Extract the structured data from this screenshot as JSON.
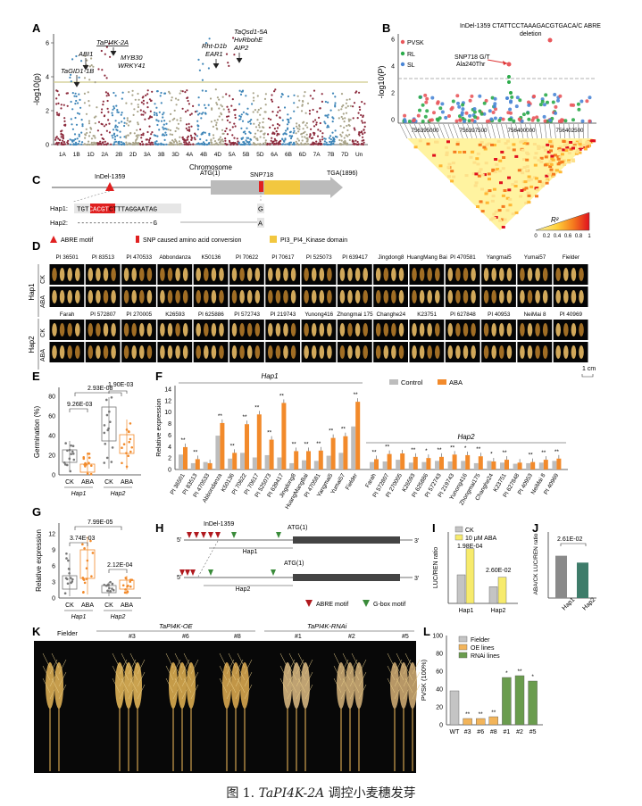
{
  "caption": {
    "prefix": "图 1. ",
    "gene": "TaPI4K-2A",
    "suffix": " 调控小麦穗发芽"
  },
  "panels": {
    "A": "A",
    "B": "B",
    "C": "C",
    "D": "D",
    "E": "E",
    "F": "F",
    "G": "G",
    "H": "H",
    "I": "I",
    "J": "J",
    "K": "K",
    "L": "L"
  },
  "panel_a": {
    "ylabel": "-log10(p)",
    "xlabel": "Chromosome",
    "yticks": [
      "6",
      "4",
      "2",
      "0"
    ],
    "chromosomes": [
      "1A",
      "1B",
      "1D",
      "2A",
      "2B",
      "2D",
      "3A",
      "3B",
      "3D",
      "4A",
      "4B",
      "4D",
      "5A",
      "5B",
      "5D",
      "6A",
      "6B",
      "6D",
      "7A",
      "7B",
      "7D",
      "Un"
    ],
    "genes": [
      "TaGID1-1B",
      "ABI1",
      "TaPI4K-2A",
      "MYB30",
      "WRKY41",
      "Rht-D1b",
      "EAR1",
      "TaQsd1-5A",
      "HvRbohE",
      "AIP2"
    ]
  },
  "panel_b": {
    "ylabel": "-log10(P)",
    "yticks": [
      "6",
      "4",
      "2",
      "0"
    ],
    "xticks": [
      "756395000",
      "756397500",
      "756400000",
      "756402500"
    ],
    "legend": [
      "PVSK",
      "RL",
      "SL"
    ],
    "colors": {
      "PVSK": "#e9585c",
      "RL": "#2bab4a",
      "SL": "#4a86d6"
    },
    "annot_indel": "InDel-1359 CTATTCCTAAAGACGTGACA/C ABRE",
    "annot_indel2": "deletion",
    "annot_snp": "SNP718 G/T",
    "annot_snp2": "Ala240Thr",
    "ld_label": "R²",
    "ld_ticks": [
      "0",
      "0.2",
      "0.4",
      "0.6",
      "0.8",
      "1"
    ]
  },
  "panel_c": {
    "indel": "InDel-1359",
    "atg": "ATG(1)",
    "snp": "SNP718",
    "tga": "TGA(1896)",
    "hap1_label": "Hap1:",
    "hap1_seq_a": "TGT",
    "hap1_seq_b": "CACGT",
    "hap1_seq_c": "CTTTAGGAATAG",
    "hap1_base": "G",
    "hap2_label": "Hap2:",
    "hap2_seq": "-------------------G",
    "hap2_base": "A",
    "legend": [
      "ABRE motif",
      "SNP caused amino acid conversion",
      "PI3_PI4_Kinase domain"
    ]
  },
  "panel_d": {
    "row_labels": [
      "Hap1",
      "Hap2"
    ],
    "sub_labels": [
      "CK",
      "ABA",
      "CK",
      "ABA"
    ],
    "hap1_names": [
      "PI 36501",
      "PI 83513",
      "PI 470533",
      "Abbondanza",
      "K50136",
      "PI 70622",
      "PI 70617",
      "PI 525073",
      "PI 639417",
      "Jingdong8",
      "HuangMang Bai",
      "PI 470581",
      "Yangmai5",
      "Yumai57",
      "Fielder"
    ],
    "hap2_names": [
      "Farah",
      "PI 572807",
      "PI 270005",
      "K26593",
      "PI 625886",
      "PI 572743",
      "PI 219743",
      "Yunong416",
      "Zhongmai 175",
      "Changhe24",
      "K23751",
      "PI 627848",
      "PI 40953",
      "NeiMai 8",
      "PI 40969"
    ],
    "scale": "1 cm"
  },
  "panel_e": {
    "ylabel": "Germination (%)",
    "yticks": [
      "80",
      "60",
      "40",
      "20",
      "0"
    ],
    "groups": [
      "CK",
      "ABA",
      "CK",
      "ABA"
    ],
    "haps": [
      "Hap1",
      "Hap2"
    ],
    "p_top": "2.93E-08",
    "p_left": "9.26E-03",
    "p_right": "1.90E-03"
  },
  "panel_f": {
    "ylabel": "Relative expression",
    "yticks": [
      "14",
      "12",
      "10",
      "8",
      "6",
      "4",
      "2",
      "0"
    ],
    "legend": [
      "Control",
      "ABA"
    ],
    "hap1": "Hap1",
    "hap2": "Hap2",
    "sig": "**",
    "sig1": "*"
  },
  "panel_g": {
    "ylabel": "Relative expression",
    "yticks": [
      "12",
      "9",
      "6",
      "3",
      "0"
    ],
    "p_top": "7.99E-05",
    "p_left": "3.74E-03",
    "p_right": "2.12E-04",
    "groups": [
      "CK",
      "ABA",
      "CK",
      "ABA"
    ],
    "haps": [
      "Hap1",
      "Hap2"
    ]
  },
  "panel_h": {
    "indel": "InDel-1359",
    "atg": "ATG(1)",
    "hap1": "Hap1",
    "hap2": "Hap2",
    "five": "5'",
    "three": "3'",
    "legend_abre": "ABRE motif",
    "legend_gbox": "G-box motif"
  },
  "panel_i": {
    "ylabel": "LUC/REN ratio",
    "legend": [
      "CK",
      "10 μM ABA"
    ],
    "p1": "1.98E-04",
    "p2": "2.60E-02",
    "groups": [
      "Hap1",
      "Hap2"
    ]
  },
  "panel_j": {
    "ylabel": "ABA/CK LUC/REN ratio",
    "p": "2.61E-02",
    "groups": [
      "Hap1",
      "Hap2"
    ]
  },
  "panel_k": {
    "left_label": "Fielder",
    "oe_label": "TaPI4K-OE",
    "rnai_label": "TaPI4K-RNAi",
    "oe_lines": [
      "#3",
      "#6",
      "#8"
    ],
    "rnai_lines": [
      "#1",
      "#2",
      "#5"
    ]
  },
  "panel_l": {
    "ylabel": "PVSK (100%)",
    "yticks": [
      "100",
      "80",
      "60",
      "40",
      "20",
      "0"
    ],
    "legend": [
      "Fielder",
      "OE lines",
      "RNAi lines"
    ],
    "categories": [
      "WT",
      "#3",
      "#6",
      "#8",
      "#1",
      "#2",
      "#5"
    ],
    "stars": [
      "",
      "**",
      "**",
      "**",
      "*",
      "**",
      "*"
    ]
  },
  "chart_data": [
    {
      "type": "bar",
      "title": "F Hap1/Hap2 relative expression",
      "categories": [
        "PI 36501",
        "PI 83513",
        "PI 470533",
        "Abbondanza",
        "K50136",
        "PI 70622",
        "PI 70617",
        "PI 525073",
        "PI 639417",
        "Jingdong8",
        "HuangMangBai",
        "PI 470581",
        "Yangmai5",
        "Yumai57",
        "Fielder",
        "Farah",
        "PI 572807",
        "PI 270005",
        "K26593",
        "PI 625886",
        "PI 572743",
        "PI 219743",
        "Yunong416",
        "Zhongmai175",
        "Changhe24",
        "K23751",
        "PI 627848",
        "PI 40953",
        "NeiMai 8",
        "PI 40969"
      ],
      "series": [
        {
          "name": "Control",
          "values": [
            2.6,
            1.1,
            1.3,
            5.9,
            1.9,
            2.9,
            2.1,
            2.5,
            2.1,
            1.1,
            1.6,
            1.5,
            2.4,
            2.9,
            7.5,
            1.3,
            1.4,
            1.7,
            1.2,
            1.3,
            1.5,
            1.4,
            1.5,
            1.1,
            1.5,
            1.2,
            1.0,
            1.1,
            1.2,
            1.5
          ]
        },
        {
          "name": "ABA",
          "values": [
            3.9,
            1.8,
            1.1,
            8.1,
            2.9,
            7.9,
            9.6,
            5.2,
            11.6,
            3.2,
            3.2,
            3.3,
            5.5,
            5.8,
            11.8,
            1.8,
            2.7,
            2.8,
            2.2,
            2.0,
            2.2,
            2.6,
            2.5,
            2.3,
            1.4,
            1.7,
            1.2,
            1.3,
            1.7,
            1.9
          ]
        }
      ],
      "ylabel": "Relative expression",
      "ylim": [
        0,
        14
      ]
    },
    {
      "type": "bar",
      "title": "L PVSK",
      "categories": [
        "WT",
        "#3",
        "#6",
        "#8",
        "#1",
        "#2",
        "#5"
      ],
      "values": [
        38,
        7,
        7,
        9,
        53,
        55,
        49
      ],
      "ylabel": "PVSK (100%)",
      "ylim": [
        0,
        100
      ]
    },
    {
      "type": "bar",
      "title": "I LUC/REN ratio",
      "categories": [
        "Hap1",
        "Hap2"
      ],
      "series": [
        {
          "name": "CK",
          "values": [
            0.12,
            0.07
          ]
        },
        {
          "name": "10 μM ABA",
          "values": [
            0.23,
            0.11
          ]
        }
      ],
      "ylim": [
        0,
        0.3
      ]
    },
    {
      "type": "bar",
      "title": "J ABA/CK LUC/REN ratio",
      "categories": [
        "Hap1",
        "Hap2"
      ],
      "values": [
        1.85,
        1.55
      ],
      "ylim": [
        0,
        2.5
      ]
    }
  ]
}
